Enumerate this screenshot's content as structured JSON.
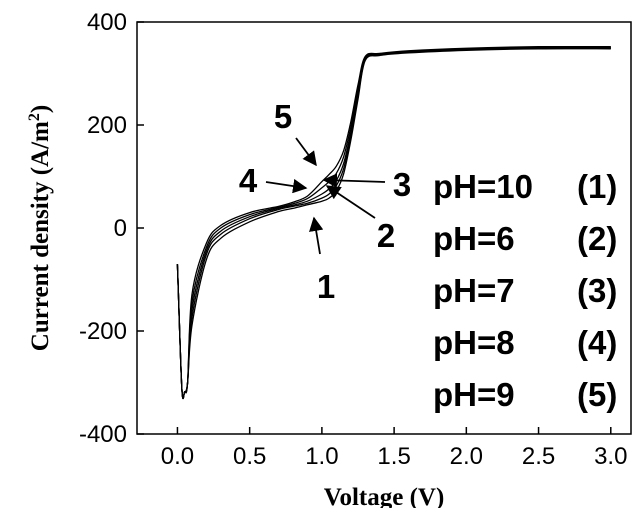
{
  "chart_data": {
    "type": "line",
    "title": "",
    "xlabel": "Voltage (V)",
    "ylabel": "Current density (A/m²)",
    "ylabel_parts": {
      "main": "Current density (A/m",
      "sup": "2",
      "end": ")"
    },
    "xlim": [
      -0.28,
      3.14
    ],
    "ylim": [
      -400,
      400
    ],
    "xticks": [
      0.0,
      0.5,
      1.0,
      1.5,
      2.0,
      2.5,
      3.0
    ],
    "xtick_labels": [
      "0.0",
      "0.5",
      "1.0",
      "1.5",
      "2.0",
      "2.5",
      "3.0"
    ],
    "yticks": [
      -400,
      -200,
      0,
      200,
      400
    ],
    "ytick_labels": [
      "-400",
      "-200",
      "0",
      "200",
      "400"
    ],
    "grid": false,
    "legend_placement": "right",
    "legend": [
      {
        "ph": "pH=10",
        "num": "(1)"
      },
      {
        "ph": "pH=6",
        "num": "(2)"
      },
      {
        "ph": "pH=7",
        "num": "(3)"
      },
      {
        "ph": "pH=8",
        "num": "(4)"
      },
      {
        "ph": "pH=9",
        "num": "(5)"
      }
    ],
    "series": [
      {
        "label": "1",
        "x": [
          0.0,
          0.03,
          0.05,
          0.07,
          0.1,
          0.2,
          0.3,
          0.5,
          0.7,
          0.8,
          0.9,
          1.0,
          1.05,
          1.1,
          1.15,
          1.2,
          1.25,
          1.3,
          1.4,
          1.6,
          2.0,
          2.5,
          3.0
        ],
        "y": [
          -70,
          -310,
          -318,
          -300,
          -190,
          -62,
          -20,
          12,
          32,
          38,
          45,
          52,
          58,
          72,
          105,
          170,
          250,
          325,
          335,
          340,
          345,
          348,
          348
        ]
      },
      {
        "label": "2",
        "x": [
          0.0,
          0.03,
          0.05,
          0.07,
          0.1,
          0.2,
          0.3,
          0.5,
          0.7,
          0.8,
          0.9,
          1.0,
          1.05,
          1.1,
          1.15,
          1.2,
          1.25,
          1.3,
          1.4,
          1.6,
          2.0,
          2.5,
          3.0
        ],
        "y": [
          -70,
          -310,
          -318,
          -300,
          -175,
          -52,
          -12,
          18,
          36,
          42,
          48,
          58,
          66,
          82,
          115,
          178,
          255,
          327,
          336,
          341,
          346,
          349,
          349
        ]
      },
      {
        "label": "3",
        "x": [
          0.0,
          0.03,
          0.05,
          0.07,
          0.1,
          0.2,
          0.3,
          0.5,
          0.7,
          0.8,
          0.9,
          1.0,
          1.05,
          1.1,
          1.15,
          1.2,
          1.25,
          1.3,
          1.4,
          1.6,
          2.0,
          2.5,
          3.0
        ],
        "y": [
          -70,
          -310,
          -318,
          -300,
          -160,
          -45,
          -6,
          22,
          38,
          44,
          52,
          66,
          76,
          92,
          125,
          186,
          262,
          329,
          337,
          342,
          347,
          350,
          350
        ]
      },
      {
        "label": "4",
        "x": [
          0.0,
          0.03,
          0.05,
          0.07,
          0.1,
          0.2,
          0.3,
          0.5,
          0.7,
          0.8,
          0.9,
          1.0,
          1.05,
          1.1,
          1.15,
          1.2,
          1.25,
          1.3,
          1.4,
          1.6,
          2.0,
          2.5,
          3.0
        ],
        "y": [
          -70,
          -310,
          -318,
          -300,
          -145,
          -38,
          0,
          26,
          40,
          47,
          57,
          78,
          90,
          106,
          138,
          196,
          270,
          331,
          338,
          343,
          348,
          351,
          351
        ]
      },
      {
        "label": "5",
        "x": [
          0.0,
          0.03,
          0.05,
          0.07,
          0.1,
          0.2,
          0.3,
          0.5,
          0.7,
          0.8,
          0.9,
          1.0,
          1.05,
          1.1,
          1.15,
          1.2,
          1.25,
          1.3,
          1.4,
          1.6,
          2.0,
          2.5,
          3.0
        ],
        "y": [
          -70,
          -310,
          -318,
          -300,
          -130,
          -30,
          5,
          30,
          42,
          50,
          62,
          90,
          104,
          120,
          150,
          206,
          278,
          333,
          339,
          344,
          349,
          352,
          352
        ]
      }
    ],
    "annotations": [
      {
        "label": "1",
        "target_x": 1.03,
        "target_y": 52
      },
      {
        "label": "2",
        "target_x": 1.1,
        "target_y": 80
      },
      {
        "label": "3",
        "target_x": 1.12,
        "target_y": 95
      },
      {
        "label": "4",
        "target_x": 0.97,
        "target_y": 78
      },
      {
        "label": "5",
        "target_x": 1.06,
        "target_y": 118
      }
    ]
  }
}
